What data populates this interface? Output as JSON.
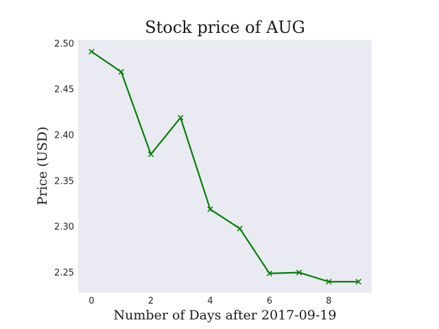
{
  "chart_data": {
    "type": "line",
    "title": "Stock price of AUG",
    "xlabel": "Number of Days after 2017-09-19",
    "ylabel": "Price (USD)",
    "x": [
      0,
      1,
      2,
      3,
      4,
      5,
      6,
      7,
      8,
      9
    ],
    "series": [
      {
        "values": [
          2.491,
          2.469,
          2.379,
          2.419,
          2.319,
          2.298,
          2.249,
          2.25,
          2.24,
          2.24
        ],
        "color": "#008000",
        "marker": "x"
      }
    ],
    "xlim": [
      -0.45,
      9.45
    ],
    "ylim": [
      2.228,
      2.504
    ],
    "xticks": [
      0,
      2,
      4,
      6,
      8
    ],
    "yticks": [
      2.25,
      2.3,
      2.35,
      2.4,
      2.45,
      2.5
    ],
    "xtick_labels": [
      "0",
      "2",
      "4",
      "6",
      "8"
    ],
    "ytick_labels": [
      "2.25",
      "2.30",
      "2.35",
      "2.40",
      "2.45",
      "2.50"
    ],
    "grid": false,
    "background": "#eaeaf2"
  }
}
